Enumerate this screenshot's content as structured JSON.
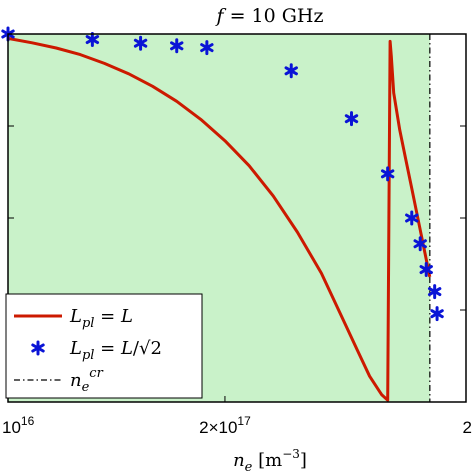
{
  "chart_data": {
    "type": "line",
    "title": "f = 10 GHz",
    "xlabel": "n_e [m^-3]",
    "ylabel": "",
    "x_ticks": [
      {
        "value": 0.2,
        "label_mantissa": "10",
        "label_exp": "16"
      },
      {
        "value": 2.0,
        "label_mantissa": "2×10",
        "label_exp": "17"
      },
      {
        "value": 4.0,
        "label_mantissa": "2",
        "label_exp": ""
      }
    ],
    "xlim": [
      0.2,
      4.0
    ],
    "ylim": [
      0,
      1
    ],
    "shaded_region": {
      "x": [
        0.2,
        3.7
      ],
      "color": "#c9f2c9"
    },
    "critical_density": 3.7,
    "series": [
      {
        "name": "L_pl = L",
        "style": "line",
        "color": "#cc1a00",
        "x": [
          0.2,
          0.4,
          0.6,
          0.8,
          1.0,
          1.2,
          1.4,
          1.6,
          1.8,
          2.0,
          2.2,
          2.4,
          2.6,
          2.8,
          3.0,
          3.1,
          3.2,
          3.3,
          3.35,
          3.36,
          3.37,
          3.38,
          3.4,
          3.45,
          3.5,
          3.55,
          3.6,
          3.65,
          3.7
        ],
        "y": [
          0.988,
          0.976,
          0.962,
          0.944,
          0.92,
          0.892,
          0.858,
          0.817,
          0.768,
          0.71,
          0.642,
          0.56,
          0.462,
          0.35,
          0.21,
          0.14,
          0.07,
          0.02,
          0.005,
          0.5,
          0.98,
          0.94,
          0.84,
          0.74,
          0.66,
          0.58,
          0.5,
          0.42,
          0.34
        ]
      },
      {
        "name": "L_pl = L/√2",
        "style": "markers",
        "color": "#0a14d6",
        "x": [
          0.2,
          0.9,
          1.3,
          1.6,
          1.85,
          2.55,
          3.05,
          3.35,
          3.55,
          3.62,
          3.67,
          3.74,
          3.76
        ],
        "y": [
          1.0,
          0.985,
          0.975,
          0.968,
          0.963,
          0.9,
          0.77,
          0.62,
          0.5,
          0.43,
          0.36,
          0.3,
          0.24
        ]
      },
      {
        "name": "n_e^cr",
        "style": "dashdot",
        "color": "#000000"
      }
    ],
    "legend_position": "bottom-left",
    "grid": false,
    "annotations": []
  }
}
